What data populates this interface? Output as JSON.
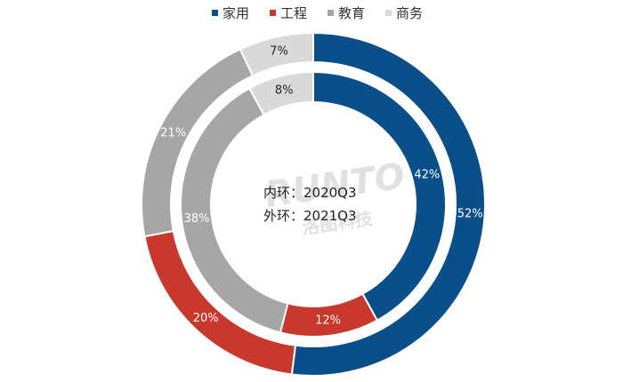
{
  "chart_data": {
    "type": "pie",
    "categories": [
      "家用",
      "工程",
      "教育",
      "商务"
    ],
    "colors": [
      "#0b4f8a",
      "#c8382c",
      "#a6a6a6",
      "#d9d9d9"
    ],
    "label_colors": [
      "#ffffff",
      "#ffffff",
      "#ffffff",
      "#222222"
    ],
    "series": [
      {
        "ring": "inner",
        "values": [
          42,
          12,
          38,
          8
        ],
        "labels": [
          "42%",
          "12%",
          "38%",
          "8%"
        ]
      },
      {
        "ring": "outer",
        "values": [
          52,
          20,
          21,
          7
        ],
        "labels": [
          "52%",
          "20%",
          "21%",
          "7%"
        ]
      }
    ],
    "center_labels": [
      "内环：2020Q3",
      "外环：2021Q3"
    ],
    "legend_position": "top"
  },
  "watermark": {
    "latin": "RUNTO",
    "chinese": "洛图科技"
  }
}
